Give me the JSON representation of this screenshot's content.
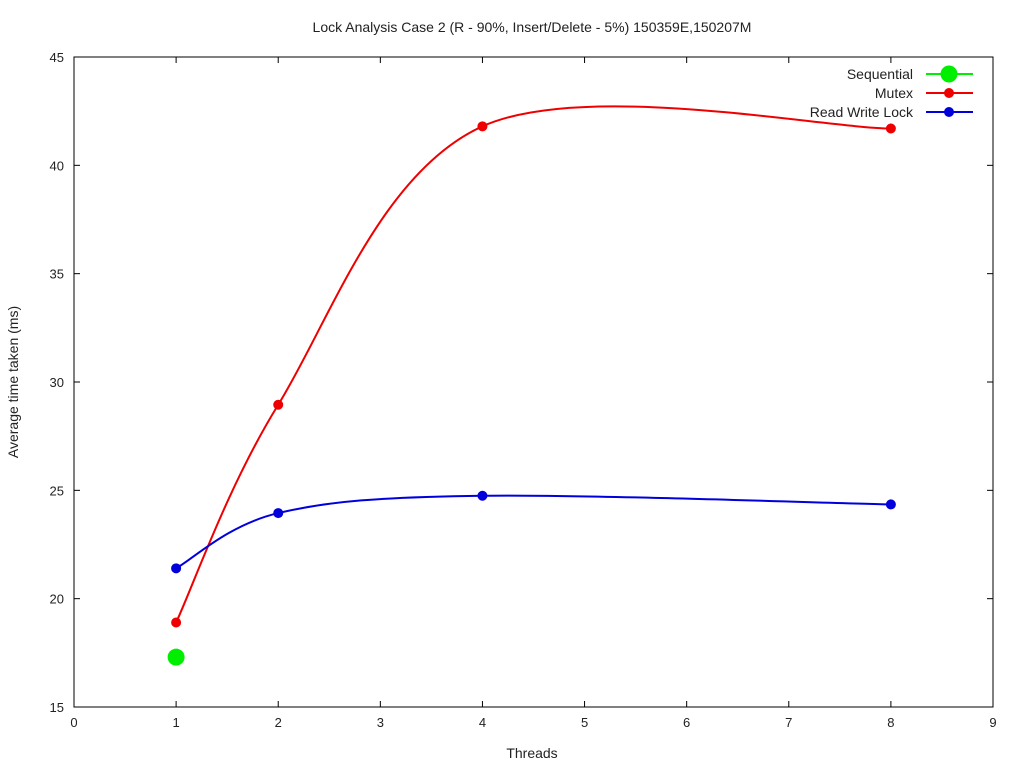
{
  "chart_data": {
    "type": "line",
    "title": "Lock Analysis Case 2 (R - 90%, Insert/Delete - 5%) 150359E,150207M",
    "xlabel": "Threads",
    "ylabel": "Average time taken (ms)",
    "xlim": [
      0,
      9
    ],
    "ylim": [
      15,
      45
    ],
    "xticks": [
      0,
      1,
      2,
      3,
      4,
      5,
      6,
      7,
      8,
      9
    ],
    "yticks": [
      15,
      20,
      25,
      30,
      35,
      40,
      45
    ],
    "grid": false,
    "legend_position": "top-right",
    "series": [
      {
        "name": "Sequential",
        "color": "#00ee00",
        "marker": "large-circle",
        "x": [
          1
        ],
        "y": [
          17.3
        ]
      },
      {
        "name": "Mutex",
        "color": "#ee0000",
        "marker": "circle",
        "x": [
          1,
          2,
          4,
          8
        ],
        "y": [
          18.9,
          28.95,
          41.8,
          41.7
        ]
      },
      {
        "name": "Read Write Lock",
        "color": "#0000dd",
        "marker": "circle",
        "x": [
          1,
          2,
          4,
          8
        ],
        "y": [
          21.4,
          23.95,
          24.75,
          24.35
        ]
      }
    ]
  }
}
